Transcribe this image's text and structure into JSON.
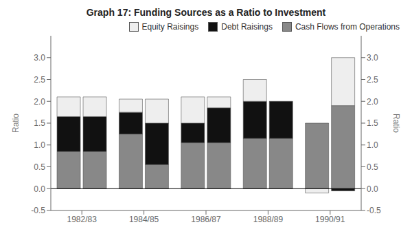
{
  "chart_data": {
    "type": "bar",
    "title": "Graph 17: Funding Sources as a Ratio to Investment",
    "categories": [
      "1982/83",
      "1984/85",
      "1986/87",
      "1988/89",
      "1990/91"
    ],
    "stacked": true,
    "stacks": [
      [
        {
          "name": "Cash Flows from Operations",
          "color": "#888888",
          "values": [
            0.85,
            1.25,
            1.05,
            1.15,
            1.5
          ]
        },
        {
          "name": "Debt Raisings",
          "color": "#111111",
          "values": [
            0.8,
            0.5,
            0.45,
            0.85,
            0.0
          ]
        },
        {
          "name": "Equity Raisings",
          "color": "#eeeeee",
          "values": [
            0.45,
            0.3,
            0.6,
            0.5,
            -0.1
          ]
        }
      ],
      [
        {
          "name": "Cash Flows from Operations",
          "color": "#888888",
          "values": [
            0.85,
            0.55,
            1.05,
            1.15,
            1.9
          ]
        },
        {
          "name": "Debt Raisings",
          "color": "#111111",
          "values": [
            0.8,
            0.95,
            0.8,
            0.85,
            -0.05
          ]
        },
        {
          "name": "Equity Raisings",
          "color": "#eeeeee",
          "values": [
            0.45,
            0.55,
            0.25,
            0.0,
            1.1
          ]
        }
      ]
    ],
    "ylabel": "Ratio",
    "y2label": "Ratio",
    "ylim": [
      -0.5,
      3.5
    ],
    "yticks": [
      -0.5,
      {
        "value": 0,
        "label": "0.0"
      },
      0.5,
      {
        "value": 1,
        "label": "1.0"
      },
      1.5,
      {
        "value": 2,
        "label": "2.0"
      },
      2.5,
      {
        "value": 3,
        "label": "3.0"
      }
    ],
    "y2lim": [
      -0.5,
      3.5
    ],
    "y2ticks": [
      -0.5,
      {
        "value": 0,
        "label": "0.0"
      },
      0.5,
      {
        "value": 1,
        "label": "1.0"
      },
      1.5,
      {
        "value": 2,
        "label": "2.0"
      },
      2.5,
      {
        "value": 3,
        "label": "3.0"
      }
    ],
    "grid": false,
    "legend": "upper right"
  }
}
